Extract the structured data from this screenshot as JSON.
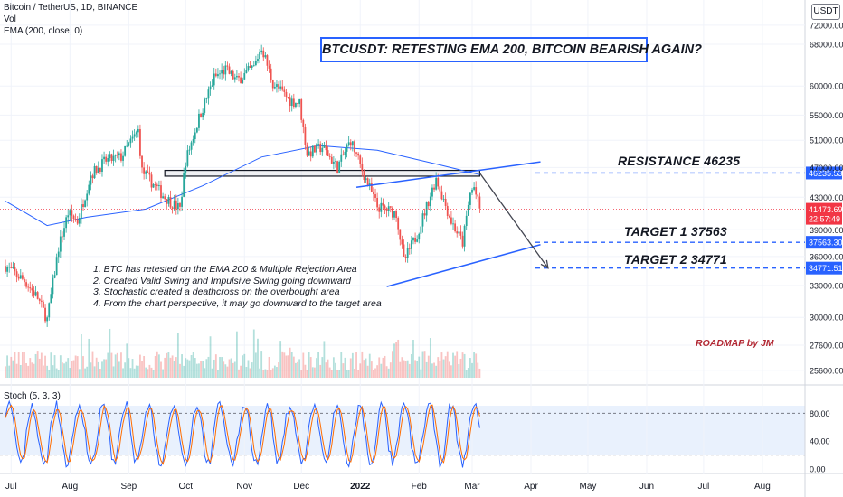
{
  "header": {
    "symbol": "Bitcoin / TetherUS, 1D, BINANCE",
    "volume_label": "Vol",
    "ema_label": "EMA (200, close, 0)",
    "currency": "USDT"
  },
  "title": "BTCUSDT: RETESTING EMA 200, BITCOIN BEARISH AGAIN?",
  "notes": [
    "1. BTC has retested on the EMA 200 & Multiple Rejection Area",
    "2. Created Valid Swing and Impulsive Swing going downward",
    "3. Stochastic created a deathcross on the overbought area",
    "4. From the chart perspective, it may go downward to the target area"
  ],
  "author": "ROADMAP by JM",
  "levels": [
    {
      "label": "RESISTANCE  46235",
      "price": 46235.53,
      "tag": "46235.53",
      "color": "#2962ff"
    },
    {
      "label": "TARGET 1  37563",
      "price": 37563.3,
      "tag": "37563.30",
      "color": "#2962ff"
    },
    {
      "label": "TARGET 2  34771",
      "price": 34771.51,
      "tag": "34771.51",
      "color": "#2962ff"
    }
  ],
  "current_price": {
    "value": 41473.69,
    "tag": "41473.69",
    "countdown": "22:57:49",
    "color": "#f23645"
  },
  "stoch": {
    "label": "Stoch (5, 3, 3)",
    "upper": 80,
    "lower": 20,
    "axis_ticks": [
      "80.00",
      "40.00",
      "0.00"
    ]
  },
  "chart_data": {
    "type": "candlestick",
    "x_ticks": [
      "Jul",
      "Aug",
      "Sep",
      "Oct",
      "Nov",
      "Dec",
      "2022",
      "Feb",
      "Mar",
      "Apr",
      "May",
      "Jun",
      "Jul",
      "Aug"
    ],
    "y_ticks": [
      "72000.00",
      "68000.00",
      "60000.00",
      "55000.00",
      "51000.00",
      "47000.00",
      "43000.00",
      "39000.00",
      "36000.00",
      "33000.00",
      "30000.00",
      "27600.00",
      "25600.00"
    ],
    "price_path": [
      [
        "2021-06-28",
        35000
      ],
      [
        "2021-07-01",
        34500
      ],
      [
        "2021-07-08",
        33500
      ],
      [
        "2021-07-15",
        31800
      ],
      [
        "2021-07-20",
        29800
      ],
      [
        "2021-07-26",
        37000
      ],
      [
        "2021-07-31",
        41000
      ],
      [
        "2021-08-05",
        40000
      ],
      [
        "2021-08-12",
        46000
      ],
      [
        "2021-08-20",
        48000
      ],
      [
        "2021-08-28",
        48500
      ],
      [
        "2021-09-06",
        52500
      ],
      [
        "2021-09-08",
        46500
      ],
      [
        "2021-09-20",
        43000
      ],
      [
        "2021-09-28",
        41500
      ],
      [
        "2021-10-01",
        48000
      ],
      [
        "2021-10-08",
        54500
      ],
      [
        "2021-10-16",
        61500
      ],
      [
        "2021-10-22",
        63000
      ],
      [
        "2021-10-28",
        61000
      ],
      [
        "2021-11-06",
        63500
      ],
      [
        "2021-11-10",
        67500
      ],
      [
        "2021-11-16",
        60500
      ],
      [
        "2021-11-25",
        57500
      ],
      [
        "2021-11-30",
        57000
      ],
      [
        "2021-12-04",
        49000
      ],
      [
        "2021-12-12",
        50000
      ],
      [
        "2021-12-20",
        47000
      ],
      [
        "2021-12-27",
        51000
      ],
      [
        "2022-01-01",
        47300
      ],
      [
        "2022-01-10",
        41800
      ],
      [
        "2022-01-20",
        41000
      ],
      [
        "2022-01-24",
        35500
      ],
      [
        "2022-01-31",
        38500
      ],
      [
        "2022-02-08",
        44000
      ],
      [
        "2022-02-10",
        45500
      ],
      [
        "2022-02-18",
        40000
      ],
      [
        "2022-02-24",
        37500
      ],
      [
        "2022-02-28",
        43500
      ],
      [
        "2022-03-02",
        44300
      ],
      [
        "2022-03-05",
        41473
      ]
    ],
    "ema_200_path": [
      [
        "2021-06-28",
        42500
      ],
      [
        "2021-07-20",
        39500
      ],
      [
        "2021-08-10",
        40500
      ],
      [
        "2021-09-10",
        41500
      ],
      [
        "2021-10-10",
        44500
      ],
      [
        "2021-11-10",
        48500
      ],
      [
        "2021-12-10",
        50200
      ],
      [
        "2022-01-10",
        49500
      ],
      [
        "2022-02-10",
        47500
      ],
      [
        "2022-03-05",
        46000
      ]
    ],
    "rejection_zone": {
      "from": 46600,
      "to": 45800,
      "start": "2021-09-20",
      "end": "2022-03-05"
    },
    "projection": {
      "from": [
        "2022-03-05",
        46235
      ],
      "to": [
        "2022-04-10",
        34771
      ]
    },
    "stoch_k_range": [
      0,
      100
    ],
    "ema_color": "#2962ff",
    "up_color": "#26a69a",
    "down_color": "#ef5350"
  }
}
